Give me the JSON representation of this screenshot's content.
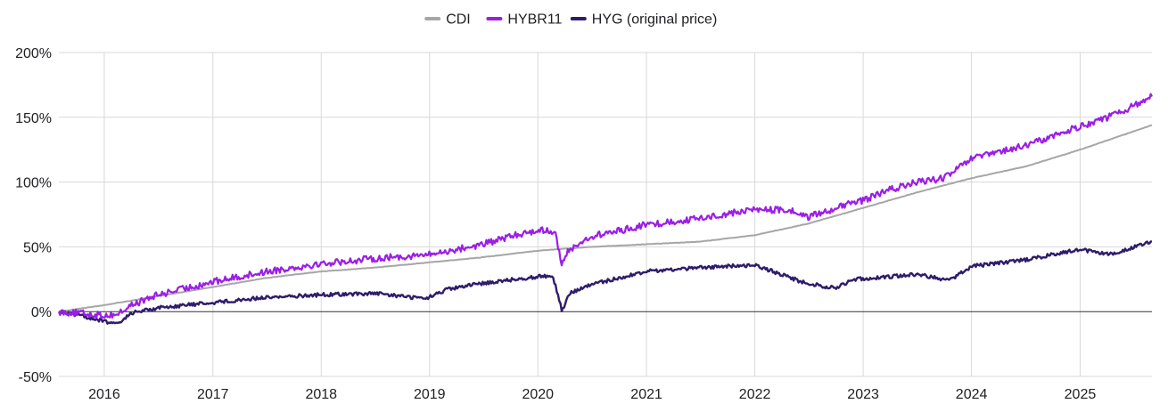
{
  "chart_data": {
    "type": "line",
    "title": "",
    "xlabel": "",
    "ylabel": "",
    "x_range": [
      "2015-08-01",
      "2025-08-31"
    ],
    "ylim": [
      -50,
      200
    ],
    "y_unit": "%",
    "y_ticks": [
      -50,
      0,
      50,
      100,
      150,
      200
    ],
    "y_tick_labels": [
      "-50%",
      "0%",
      "50%",
      "100%",
      "150%",
      "200%"
    ],
    "x_ticks": [
      "2016-01-01",
      "2017-01-01",
      "2018-01-01",
      "2019-01-01",
      "2020-01-01",
      "2021-01-01",
      "2022-01-01",
      "2023-01-01",
      "2024-01-01",
      "2025-01-01"
    ],
    "x_tick_labels": [
      "2016",
      "2017",
      "2018",
      "2019",
      "2020",
      "2021",
      "2022",
      "2023",
      "2024",
      "2025"
    ],
    "grid": true,
    "legend_position": "top-center",
    "series": [
      {
        "name": "CDI",
        "color": "#a6a6a6",
        "points": [
          [
            "2015-08-01",
            0
          ],
          [
            "2016-01-01",
            5
          ],
          [
            "2016-07-01",
            12
          ],
          [
            "2017-01-01",
            19
          ],
          [
            "2017-07-01",
            26
          ],
          [
            "2018-01-01",
            31
          ],
          [
            "2018-07-01",
            34
          ],
          [
            "2019-01-01",
            38
          ],
          [
            "2019-07-01",
            42
          ],
          [
            "2020-01-01",
            47
          ],
          [
            "2020-07-01",
            50
          ],
          [
            "2021-01-01",
            52
          ],
          [
            "2021-07-01",
            54
          ],
          [
            "2022-01-01",
            59
          ],
          [
            "2022-07-01",
            68
          ],
          [
            "2023-01-01",
            80
          ],
          [
            "2023-07-01",
            92
          ],
          [
            "2024-01-01",
            103
          ],
          [
            "2024-07-01",
            112
          ],
          [
            "2025-01-01",
            125
          ],
          [
            "2025-08-31",
            144
          ]
        ]
      },
      {
        "name": "HYBR11",
        "color": "#9b1ee6",
        "points": [
          [
            "2015-08-01",
            0
          ],
          [
            "2015-10-01",
            -1
          ],
          [
            "2016-01-01",
            -3
          ],
          [
            "2016-02-15",
            -2
          ],
          [
            "2016-04-01",
            5
          ],
          [
            "2016-07-01",
            13
          ],
          [
            "2017-01-01",
            23
          ],
          [
            "2017-07-01",
            31
          ],
          [
            "2018-01-01",
            37
          ],
          [
            "2018-07-01",
            41
          ],
          [
            "2019-01-01",
            44
          ],
          [
            "2019-07-01",
            52
          ],
          [
            "2019-10-01",
            58
          ],
          [
            "2020-01-01",
            63
          ],
          [
            "2020-03-01",
            62
          ],
          [
            "2020-03-20",
            35
          ],
          [
            "2020-04-15",
            48
          ],
          [
            "2020-07-01",
            58
          ],
          [
            "2021-01-01",
            67
          ],
          [
            "2021-07-01",
            72
          ],
          [
            "2022-01-01",
            79
          ],
          [
            "2022-05-01",
            78
          ],
          [
            "2022-07-01",
            73
          ],
          [
            "2022-10-01",
            80
          ],
          [
            "2023-01-01",
            86
          ],
          [
            "2023-04-01",
            94
          ],
          [
            "2023-07-01",
            100
          ],
          [
            "2023-10-01",
            103
          ],
          [
            "2024-01-01",
            118
          ],
          [
            "2024-07-01",
            128
          ],
          [
            "2025-01-01",
            143
          ],
          [
            "2025-05-01",
            152
          ],
          [
            "2025-08-31",
            166
          ]
        ]
      },
      {
        "name": "HYG (original price)",
        "color": "#2e1c6b",
        "points": [
          [
            "2015-08-01",
            0
          ],
          [
            "2015-11-01",
            -4
          ],
          [
            "2016-02-15",
            -10
          ],
          [
            "2016-04-01",
            -1
          ],
          [
            "2016-07-01",
            3
          ],
          [
            "2017-01-01",
            7
          ],
          [
            "2017-07-01",
            11
          ],
          [
            "2018-01-01",
            13
          ],
          [
            "2018-07-01",
            14
          ],
          [
            "2018-12-20",
            10
          ],
          [
            "2019-03-01",
            17
          ],
          [
            "2019-07-01",
            22
          ],
          [
            "2020-01-01",
            27
          ],
          [
            "2020-02-20",
            28
          ],
          [
            "2020-03-23",
            0
          ],
          [
            "2020-04-15",
            14
          ],
          [
            "2020-07-01",
            21
          ],
          [
            "2021-01-01",
            31
          ],
          [
            "2021-07-01",
            34
          ],
          [
            "2022-01-01",
            36
          ],
          [
            "2022-06-20",
            22
          ],
          [
            "2022-09-30",
            18
          ],
          [
            "2022-12-01",
            25
          ],
          [
            "2023-04-01",
            27
          ],
          [
            "2023-07-01",
            29
          ],
          [
            "2023-10-20",
            24
          ],
          [
            "2024-01-01",
            35
          ],
          [
            "2024-07-01",
            40
          ],
          [
            "2025-01-01",
            48
          ],
          [
            "2025-04-08",
            44
          ],
          [
            "2025-08-31",
            54
          ]
        ]
      }
    ]
  }
}
